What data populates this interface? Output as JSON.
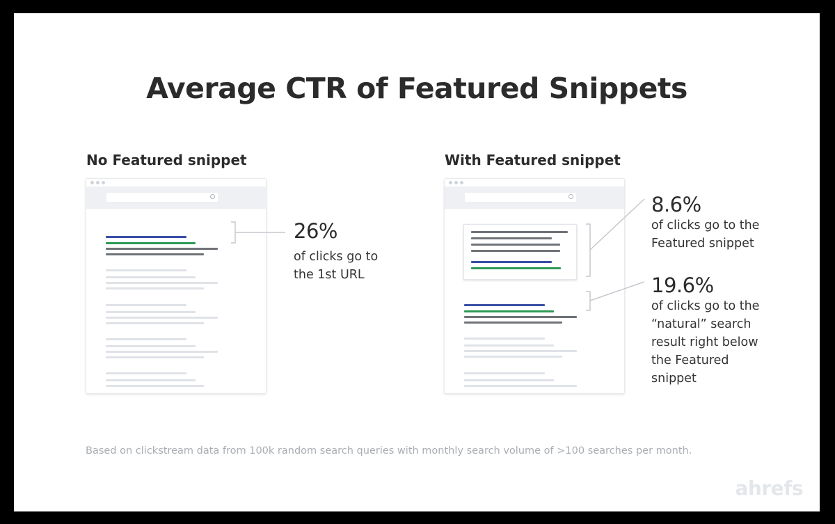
{
  "title": "Average CTR of Featured Snippets",
  "left_panel": {
    "heading": "No Featured snippet",
    "stat_value": "26%",
    "stat_lines": [
      "of clicks go to",
      "the 1st URL"
    ]
  },
  "right_panel": {
    "heading": "With Featured snippet",
    "snippet_stat": {
      "value": "8.6%",
      "lines": [
        "of clicks go to the",
        "Featured snippet"
      ]
    },
    "natural_stat": {
      "value": "19.6%",
      "lines": [
        "of clicks go to the",
        "“natural” search",
        "result right below",
        "the Featured",
        "snippet"
      ]
    }
  },
  "footnote": "Based on clickstream data from 100k random search queries with monthly search volume of >100 searches per month.",
  "brand": "ahrefs",
  "colors": {
    "result_title": "#3a4fa6",
    "result_url": "#2e9a55",
    "result_text": "#6f7378",
    "placeholder": "#dfe3e8"
  }
}
